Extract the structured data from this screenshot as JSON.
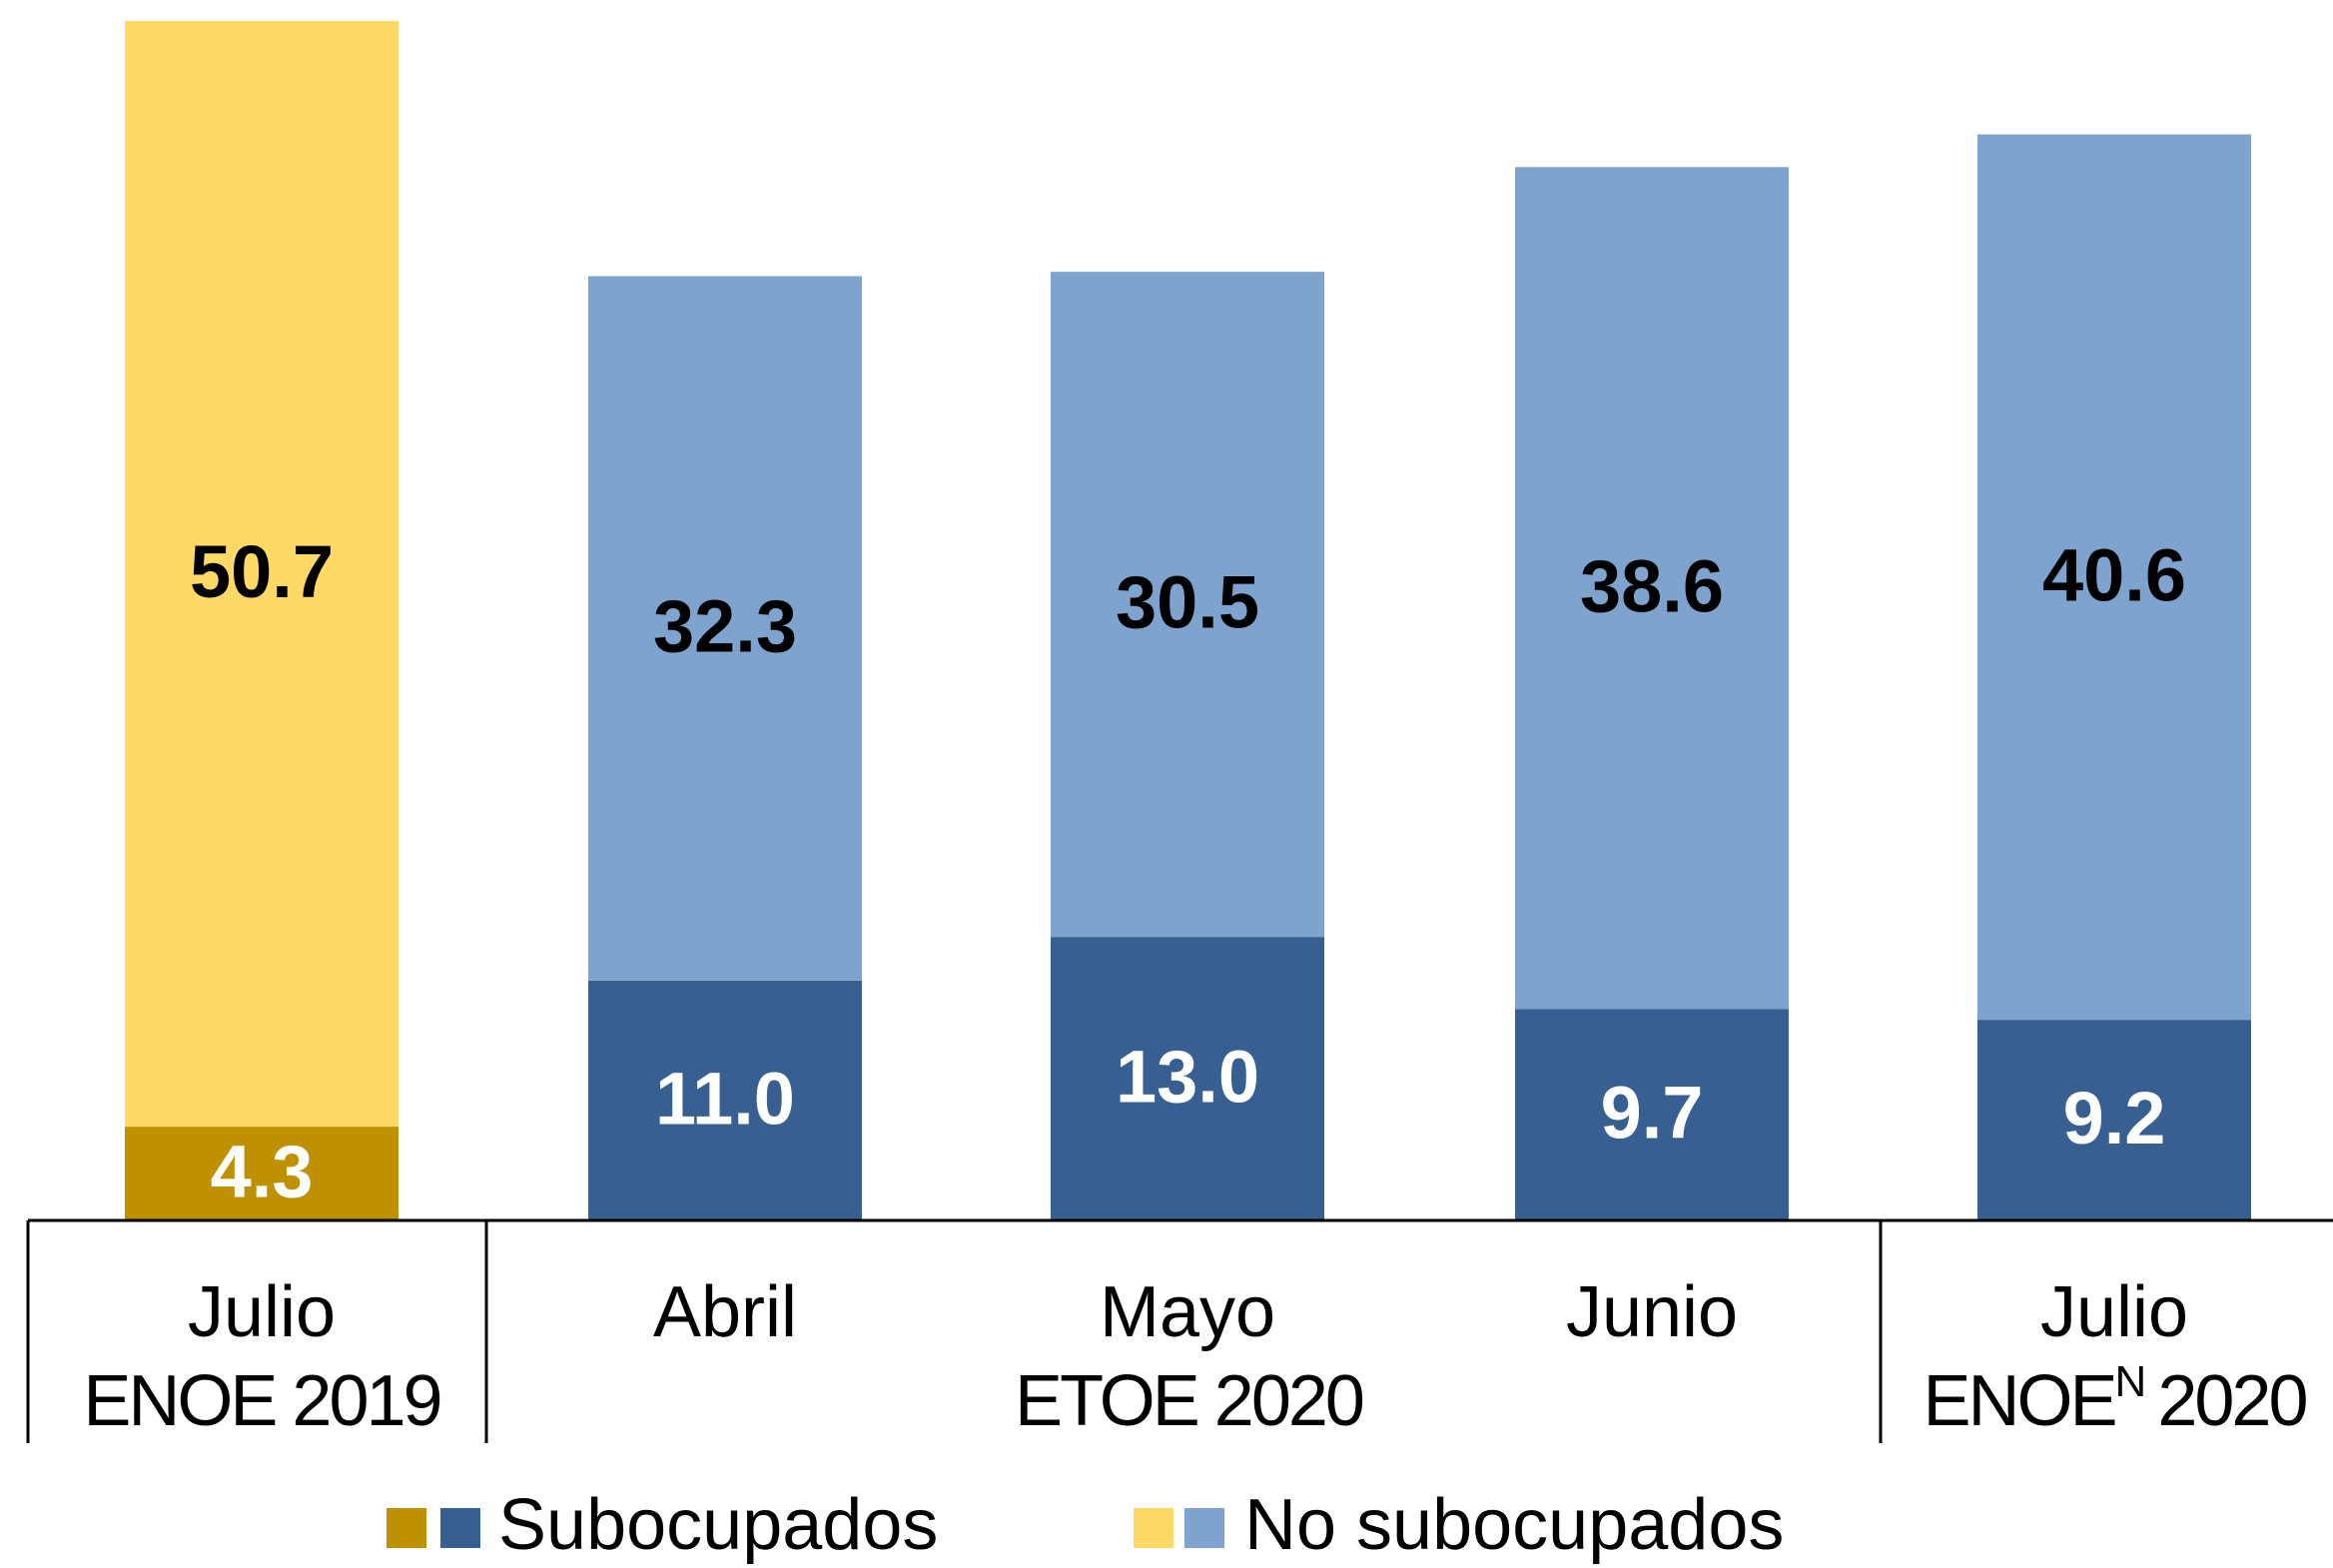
{
  "chart_data": {
    "type": "stacked_bar",
    "categories": [
      "Julio",
      "Abril",
      "Mayo",
      "Junio",
      "Julio"
    ],
    "groups": [
      {
        "label": "ENOE 2019",
        "count": 1
      },
      {
        "label": "ETOE 2020",
        "count": 3
      },
      {
        "label": "ENOE",
        "superscript": "N",
        "label_end": "2020",
        "count": 1
      }
    ],
    "series": [
      {
        "name": "Subocupados",
        "colors": [
          "#bf9000",
          "#375f92",
          "#375f92",
          "#375f92",
          "#375f92"
        ],
        "values": [
          4.3,
          11.0,
          13.0,
          9.7,
          9.2
        ],
        "value_labels": [
          "4.3",
          "11.0",
          "13.0",
          "9.7",
          "9.2"
        ]
      },
      {
        "name": "No subocupados",
        "colors": [
          "#ffd966",
          "#7fa3cf",
          "#7fa3cf",
          "#7fa3cf",
          "#7fa3cf"
        ],
        "values": [
          50.7,
          32.3,
          30.5,
          38.6,
          40.6
        ],
        "value_labels": [
          "50.7",
          "32.3",
          "30.5",
          "38.6",
          "40.6"
        ]
      }
    ]
  }
}
